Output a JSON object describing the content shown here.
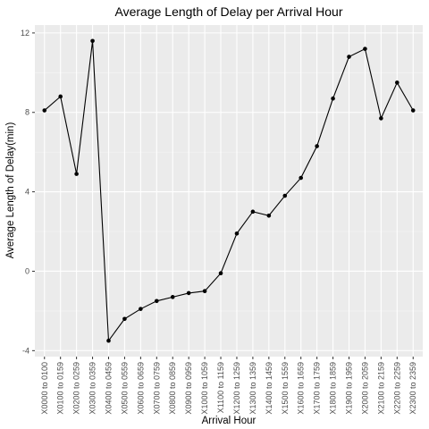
{
  "chart_data": {
    "type": "line",
    "title": "Average Length of Delay per Arrival Hour",
    "xlabel": "Arrival Hour",
    "ylabel": "Average Length of Delay(min)",
    "categories": [
      "X0000 to 0100",
      "X0100 to 0159",
      "X0200 to 0259",
      "X0300 to 0359",
      "X0400 to 0459",
      "X0500 to 0559",
      "X0600 to 0659",
      "X0700 to 0759",
      "X0800 to 0859",
      "X0900 to 0959",
      "X1000 to 1059",
      "X1100 to 1159",
      "X1200 to 1259",
      "X1300 to 1359",
      "X1400 to 1459",
      "X1500 to 1559",
      "X1600 to 1659",
      "X1700 to 1759",
      "X1800 to 1859",
      "X1900 to 1959",
      "X2000 to 2059",
      "X2100 to 2159",
      "X2200 to 2259",
      "X2300 to 2359"
    ],
    "values": [
      8.1,
      8.8,
      4.9,
      11.6,
      -3.5,
      -2.4,
      -1.9,
      -1.5,
      -1.3,
      -1.1,
      -1.0,
      -0.1,
      1.9,
      3.0,
      2.8,
      3.8,
      4.7,
      6.3,
      8.7,
      10.8,
      11.2,
      7.7,
      9.5,
      8.1
    ],
    "y_ticks": [
      -4,
      0,
      4,
      8,
      12
    ],
    "ylim": [
      -4.3,
      12.4
    ],
    "grid": true,
    "legend": "none",
    "colors": {
      "panel": "#ebebeb",
      "line": "#000000"
    }
  }
}
